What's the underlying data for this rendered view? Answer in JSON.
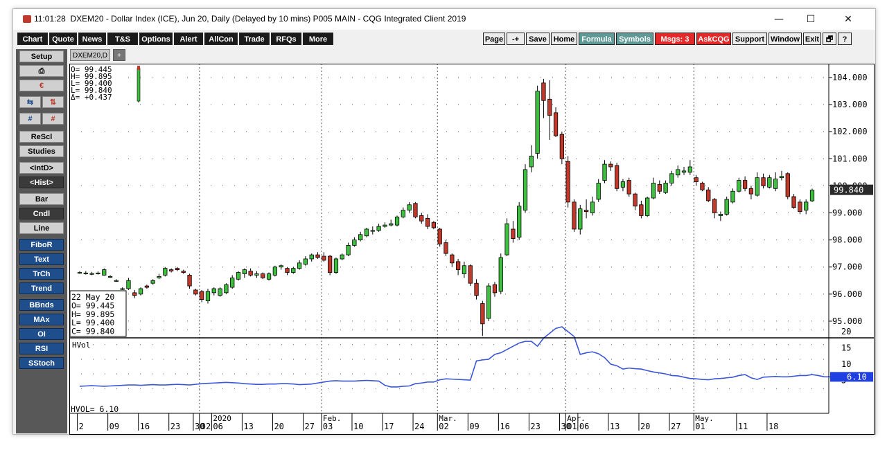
{
  "window": {
    "time": "11:01:28",
    "title": "DXEM20 - Dollar Index (ICE), Jun 20, Daily (Delayed by 10 mins)  P005 MAIN - CQG Integrated Client 2019",
    "minimize": "—",
    "maximize": "☐",
    "close": "✕"
  },
  "toolbar": {
    "left": [
      "Chart",
      "Quote",
      "News",
      "T&S",
      "Options",
      "Alert",
      "AllCon",
      "Trade",
      "RFQs",
      "More"
    ],
    "right": [
      {
        "label": "Page",
        "style": "light"
      },
      {
        "label": "-+",
        "style": "light"
      },
      {
        "label": "Save",
        "style": "light"
      },
      {
        "label": "Home",
        "style": "light"
      },
      {
        "label": "Formula",
        "style": "teal"
      },
      {
        "label": "Symbols",
        "style": "teal"
      },
      {
        "label": "Msgs: 3",
        "style": "red"
      },
      {
        "label": "AskCQG",
        "style": "red"
      },
      {
        "label": "Support",
        "style": "light"
      },
      {
        "label": "Window",
        "style": "light"
      },
      {
        "label": "Exit",
        "style": "light"
      },
      {
        "label": "🗗",
        "style": "light"
      },
      {
        "label": "?",
        "style": "light"
      }
    ]
  },
  "sidebar": {
    "setup": "Setup",
    "icons": [
      "printer-icon",
      "export-icon",
      "arrows-swap-icon",
      "arrows-updown-icon",
      "grid-blue-icon",
      "grid-red-icon"
    ],
    "buttons": [
      {
        "label": "ReScl",
        "style": "gray"
      },
      {
        "label": "Studies",
        "style": "gray"
      },
      {
        "label": "<IntD>",
        "style": "gray"
      },
      {
        "label": "<Hist>",
        "style": "dark"
      },
      {
        "label": "Bar",
        "style": "gray"
      },
      {
        "label": "Cndl",
        "style": "dark"
      },
      {
        "label": "Line",
        "style": "gray"
      },
      {
        "label": "FiboR",
        "style": "blue"
      },
      {
        "label": "Text",
        "style": "blue"
      },
      {
        "label": "TrCh",
        "style": "blue"
      },
      {
        "label": "Trend",
        "style": "blue"
      },
      {
        "label": "BBnds",
        "style": "blue"
      },
      {
        "label": "MAx",
        "style": "blue"
      },
      {
        "label": "OI",
        "style": "blue"
      },
      {
        "label": "RSI",
        "style": "blue"
      },
      {
        "label": "SStoch",
        "style": "blue"
      }
    ]
  },
  "tabs": {
    "active": "DXEM20,D",
    "add": "+"
  },
  "quote_box": [
    "O= 99.445",
    "H= 99.895",
    "L= 99.400",
    "L= 99.840",
    "Δ= +0.437"
  ],
  "cursor_box": [
    "22 May 20",
    "O=  99.445",
    "H=  99.895",
    "L=  99.400",
    "C=  99.840"
  ],
  "price_axis": {
    "ticks": [
      "104.000",
      "103.000",
      "102.000",
      "101.000",
      "100.000",
      "99.000",
      "98.000",
      "97.000",
      "96.000",
      "95.000"
    ],
    "last": "99.840"
  },
  "hvol": {
    "label": "HVol",
    "readout": "HVOL=     6.10",
    "ticks": [
      "20",
      "15",
      "10",
      "5"
    ],
    "last": "6.10"
  },
  "date_axis": {
    "days": [
      "2",
      "09",
      "16",
      "23",
      "30",
      "02",
      "06",
      "13",
      "20",
      "27",
      "03",
      "10",
      "17",
      "24",
      "02",
      "09",
      "16",
      "23",
      "30",
      "01",
      "06",
      "13",
      "20",
      "27",
      "01",
      "11",
      "18"
    ],
    "months": [
      "2020",
      "Feb.",
      "Mar.",
      "Apr.",
      "May."
    ]
  },
  "colors": {
    "up": "#3fbf3f",
    "down": "#c0392b",
    "hvol": "#3a55d6",
    "frame": "#000000"
  },
  "chart_data": [
    {
      "type": "candlestick",
      "series": "DXEM20 Daily",
      "ylim": [
        94.0,
        104.3
      ],
      "candles": [
        {
          "o": 96.8,
          "h": 96.85,
          "l": 96.75,
          "c": 96.8
        },
        {
          "o": 96.78,
          "h": 96.85,
          "l": 96.72,
          "c": 96.78
        },
        {
          "o": 96.76,
          "h": 96.82,
          "l": 96.7,
          "c": 96.76
        },
        {
          "o": 96.78,
          "h": 96.84,
          "l": 96.72,
          "c": 96.78
        },
        {
          "o": 96.7,
          "h": 96.95,
          "l": 96.68,
          "c": 96.9
        },
        {
          "o": 96.65,
          "h": 96.7,
          "l": 96.6,
          "c": 96.65
        },
        {
          "o": 96.5,
          "h": 96.55,
          "l": 96.45,
          "c": 96.5
        },
        {
          "o": 96.2,
          "h": 96.25,
          "l": 96.15,
          "c": 96.2
        },
        {
          "o": 96.2,
          "h": 96.6,
          "l": 96.15,
          "c": 96.5
        },
        {
          "o": 96.05,
          "h": 96.15,
          "l": 95.85,
          "c": 95.95
        },
        {
          "o": 96.0,
          "h": 96.25,
          "l": 95.95,
          "c": 96.2
        },
        {
          "o": 96.3,
          "h": 96.35,
          "l": 96.2,
          "c": 96.25
        },
        {
          "o": 96.4,
          "h": 96.55,
          "l": 96.35,
          "c": 96.5
        },
        {
          "o": 96.6,
          "h": 96.75,
          "l": 96.55,
          "c": 96.65
        },
        {
          "o": 96.7,
          "h": 97.0,
          "l": 96.65,
          "c": 96.95
        },
        {
          "o": 96.9,
          "h": 96.95,
          "l": 96.8,
          "c": 96.85
        },
        {
          "o": 96.95,
          "h": 97.0,
          "l": 96.85,
          "c": 96.9
        },
        {
          "o": 96.85,
          "h": 96.9,
          "l": 96.75,
          "c": 96.8
        },
        {
          "o": 96.7,
          "h": 96.75,
          "l": 96.2,
          "c": 96.3
        },
        {
          "o": 96.15,
          "h": 96.2,
          "l": 95.95,
          "c": 96.0
        },
        {
          "o": 96.1,
          "h": 96.15,
          "l": 95.7,
          "c": 95.8
        },
        {
          "o": 95.75,
          "h": 96.2,
          "l": 95.65,
          "c": 96.1
        },
        {
          "o": 96.05,
          "h": 96.25,
          "l": 95.95,
          "c": 96.2
        },
        {
          "o": 95.95,
          "h": 96.25,
          "l": 95.9,
          "c": 96.2
        },
        {
          "o": 96.05,
          "h": 96.4,
          "l": 96.0,
          "c": 96.35
        },
        {
          "o": 96.25,
          "h": 96.7,
          "l": 96.2,
          "c": 96.6
        },
        {
          "o": 96.55,
          "h": 96.85,
          "l": 96.5,
          "c": 96.8
        },
        {
          "o": 96.75,
          "h": 96.95,
          "l": 96.6,
          "c": 96.9
        },
        {
          "o": 96.85,
          "h": 96.95,
          "l": 96.65,
          "c": 96.7
        },
        {
          "o": 96.7,
          "h": 96.85,
          "l": 96.6,
          "c": 96.75
        },
        {
          "o": 96.75,
          "h": 96.8,
          "l": 96.55,
          "c": 96.6
        },
        {
          "o": 96.55,
          "h": 96.8,
          "l": 96.5,
          "c": 96.75
        },
        {
          "o": 96.7,
          "h": 97.05,
          "l": 96.65,
          "c": 97.0
        },
        {
          "o": 97.0,
          "h": 97.1,
          "l": 96.9,
          "c": 97.05
        },
        {
          "o": 96.95,
          "h": 97.0,
          "l": 96.7,
          "c": 96.8
        },
        {
          "o": 96.8,
          "h": 97.0,
          "l": 96.75,
          "c": 96.95
        },
        {
          "o": 96.95,
          "h": 97.25,
          "l": 96.9,
          "c": 97.15
        },
        {
          "o": 97.1,
          "h": 97.4,
          "l": 97.05,
          "c": 97.3
        },
        {
          "o": 97.3,
          "h": 97.5,
          "l": 97.2,
          "c": 97.45
        },
        {
          "o": 97.45,
          "h": 97.55,
          "l": 97.3,
          "c": 97.35
        },
        {
          "o": 97.4,
          "h": 97.55,
          "l": 97.2,
          "c": 97.25
        },
        {
          "o": 97.4,
          "h": 97.45,
          "l": 96.7,
          "c": 96.8
        },
        {
          "o": 96.8,
          "h": 97.35,
          "l": 96.75,
          "c": 97.3
        },
        {
          "o": 97.3,
          "h": 97.5,
          "l": 97.25,
          "c": 97.45
        },
        {
          "o": 97.45,
          "h": 97.9,
          "l": 97.4,
          "c": 97.8
        },
        {
          "o": 97.8,
          "h": 98.1,
          "l": 97.75,
          "c": 98.0
        },
        {
          "o": 98.0,
          "h": 98.3,
          "l": 97.95,
          "c": 98.2
        },
        {
          "o": 98.15,
          "h": 98.45,
          "l": 98.1,
          "c": 98.4
        },
        {
          "o": 98.35,
          "h": 98.5,
          "l": 98.2,
          "c": 98.35
        },
        {
          "o": 98.35,
          "h": 98.6,
          "l": 98.3,
          "c": 98.5
        },
        {
          "o": 98.5,
          "h": 98.65,
          "l": 98.45,
          "c": 98.55
        },
        {
          "o": 98.55,
          "h": 98.75,
          "l": 98.5,
          "c": 98.6
        },
        {
          "o": 98.55,
          "h": 98.9,
          "l": 98.5,
          "c": 98.85
        },
        {
          "o": 98.85,
          "h": 99.2,
          "l": 98.8,
          "c": 99.1
        },
        {
          "o": 99.1,
          "h": 99.4,
          "l": 99.0,
          "c": 99.3
        },
        {
          "o": 99.35,
          "h": 99.4,
          "l": 98.8,
          "c": 98.85
        },
        {
          "o": 98.9,
          "h": 99.0,
          "l": 98.6,
          "c": 98.7
        },
        {
          "o": 98.8,
          "h": 98.95,
          "l": 98.4,
          "c": 98.5
        },
        {
          "o": 98.65,
          "h": 98.7,
          "l": 98.4,
          "c": 98.45
        },
        {
          "o": 98.4,
          "h": 98.45,
          "l": 97.75,
          "c": 97.85
        },
        {
          "o": 97.9,
          "h": 98.0,
          "l": 97.4,
          "c": 97.5
        },
        {
          "o": 97.45,
          "h": 97.5,
          "l": 97.0,
          "c": 97.15
        },
        {
          "o": 97.2,
          "h": 97.3,
          "l": 96.7,
          "c": 96.9
        },
        {
          "o": 96.75,
          "h": 97.2,
          "l": 96.6,
          "c": 97.05
        },
        {
          "o": 97.05,
          "h": 97.1,
          "l": 96.3,
          "c": 96.4
        },
        {
          "o": 96.4,
          "h": 96.55,
          "l": 95.8,
          "c": 95.95
        },
        {
          "o": 95.65,
          "h": 95.75,
          "l": 94.45,
          "c": 94.9
        },
        {
          "o": 95.1,
          "h": 96.4,
          "l": 95.0,
          "c": 96.3
        },
        {
          "o": 96.35,
          "h": 96.45,
          "l": 95.9,
          "c": 96.05
        },
        {
          "o": 96.1,
          "h": 97.5,
          "l": 96.0,
          "c": 97.35
        },
        {
          "o": 97.45,
          "h": 98.8,
          "l": 97.4,
          "c": 98.6
        },
        {
          "o": 98.4,
          "h": 98.7,
          "l": 97.9,
          "c": 98.05
        },
        {
          "o": 98.1,
          "h": 99.4,
          "l": 98.0,
          "c": 99.25
        },
        {
          "o": 99.1,
          "h": 100.8,
          "l": 99.0,
          "c": 100.6
        },
        {
          "o": 100.7,
          "h": 101.5,
          "l": 100.5,
          "c": 101.1
        },
        {
          "o": 101.2,
          "h": 103.7,
          "l": 101.0,
          "c": 103.5
        },
        {
          "o": 103.8,
          "h": 103.95,
          "l": 102.5,
          "c": 103.15
        },
        {
          "o": 103.2,
          "h": 103.9,
          "l": 101.7,
          "c": 102.6
        },
        {
          "o": 102.7,
          "h": 102.9,
          "l": 101.8,
          "c": 101.85
        },
        {
          "o": 101.9,
          "h": 102.0,
          "l": 100.8,
          "c": 101.0
        },
        {
          "o": 100.9,
          "h": 101.1,
          "l": 99.2,
          "c": 99.4
        },
        {
          "o": 99.4,
          "h": 99.5,
          "l": 98.3,
          "c": 98.4
        },
        {
          "o": 98.4,
          "h": 99.3,
          "l": 98.2,
          "c": 99.15
        },
        {
          "o": 99.1,
          "h": 99.5,
          "l": 98.8,
          "c": 99.05
        },
        {
          "o": 99.0,
          "h": 99.6,
          "l": 98.9,
          "c": 99.4
        },
        {
          "o": 99.5,
          "h": 100.25,
          "l": 99.4,
          "c": 100.1
        },
        {
          "o": 100.2,
          "h": 100.95,
          "l": 100.1,
          "c": 100.8
        },
        {
          "o": 100.8,
          "h": 100.9,
          "l": 100.55,
          "c": 100.7
        },
        {
          "o": 100.75,
          "h": 100.85,
          "l": 99.8,
          "c": 99.9
        },
        {
          "o": 99.95,
          "h": 100.25,
          "l": 99.8,
          "c": 100.15
        },
        {
          "o": 100.2,
          "h": 100.3,
          "l": 99.6,
          "c": 99.7
        },
        {
          "o": 99.7,
          "h": 99.75,
          "l": 99.1,
          "c": 99.25
        },
        {
          "o": 99.3,
          "h": 99.45,
          "l": 98.8,
          "c": 98.9
        },
        {
          "o": 98.9,
          "h": 99.6,
          "l": 98.85,
          "c": 99.55
        },
        {
          "o": 99.55,
          "h": 100.3,
          "l": 99.5,
          "c": 100.1
        },
        {
          "o": 100.05,
          "h": 100.2,
          "l": 99.7,
          "c": 99.8
        },
        {
          "o": 99.75,
          "h": 100.2,
          "l": 99.7,
          "c": 100.1
        },
        {
          "o": 100.1,
          "h": 100.55,
          "l": 100.0,
          "c": 100.45
        },
        {
          "o": 100.4,
          "h": 100.75,
          "l": 100.3,
          "c": 100.6
        },
        {
          "o": 100.5,
          "h": 100.7,
          "l": 100.4,
          "c": 100.55
        },
        {
          "o": 100.5,
          "h": 100.95,
          "l": 100.4,
          "c": 100.7
        },
        {
          "o": 100.3,
          "h": 100.4,
          "l": 100.0,
          "c": 100.15
        },
        {
          "o": 100.1,
          "h": 100.15,
          "l": 99.8,
          "c": 99.85
        },
        {
          "o": 99.85,
          "h": 99.95,
          "l": 99.4,
          "c": 99.45
        },
        {
          "o": 99.5,
          "h": 99.55,
          "l": 98.8,
          "c": 99.0
        },
        {
          "o": 98.9,
          "h": 99.05,
          "l": 98.7,
          "c": 98.95
        },
        {
          "o": 98.95,
          "h": 99.6,
          "l": 98.9,
          "c": 99.5
        },
        {
          "o": 99.4,
          "h": 99.9,
          "l": 99.35,
          "c": 99.8
        },
        {
          "o": 99.8,
          "h": 100.3,
          "l": 99.75,
          "c": 100.2
        },
        {
          "o": 100.2,
          "h": 100.35,
          "l": 99.8,
          "c": 99.9
        },
        {
          "o": 99.9,
          "h": 100.0,
          "l": 99.5,
          "c": 99.7
        },
        {
          "o": 99.65,
          "h": 100.5,
          "l": 99.6,
          "c": 100.3
        },
        {
          "o": 100.3,
          "h": 100.45,
          "l": 99.9,
          "c": 100.0
        },
        {
          "o": 99.95,
          "h": 100.4,
          "l": 99.9,
          "c": 100.3
        },
        {
          "o": 99.9,
          "h": 100.5,
          "l": 99.8,
          "c": 100.25
        },
        {
          "o": 100.3,
          "h": 100.55,
          "l": 100.2,
          "c": 100.35
        },
        {
          "o": 100.45,
          "h": 100.5,
          "l": 99.5,
          "c": 99.6
        },
        {
          "o": 99.6,
          "h": 99.7,
          "l": 99.15,
          "c": 99.2
        },
        {
          "o": 99.4,
          "h": 99.5,
          "l": 98.95,
          "c": 99.05
        },
        {
          "o": 99.1,
          "h": 99.5,
          "l": 98.95,
          "c": 99.4
        },
        {
          "o": 99.445,
          "h": 99.895,
          "l": 99.4,
          "c": 99.84
        }
      ]
    },
    {
      "type": "line",
      "series": "HVol",
      "ylim": [
        0,
        22
      ],
      "values": [
        3.2,
        3.3,
        3.4,
        3.3,
        3.2,
        3.3,
        3.4,
        3.5,
        3.6,
        3.6,
        3.5,
        3.6,
        3.7,
        3.6,
        3.6,
        3.7,
        3.8,
        3.7,
        3.6,
        3.8,
        4.0,
        4.1,
        4.2,
        4.3,
        4.4,
        4.3,
        4.2,
        4.0,
        3.9,
        3.8,
        3.8,
        3.9,
        3.9,
        4.0,
        4.0,
        3.9,
        3.7,
        3.8,
        3.9,
        4.2,
        4.5,
        4.8,
        4.9,
        4.8,
        4.8,
        4.8,
        4.9,
        5.0,
        4.9,
        4.8,
        3.5,
        3.0,
        3.0,
        3.2,
        3.3,
        4.0,
        4.2,
        4.5,
        4.5,
        5.2,
        5.5,
        5.4,
        5.3,
        5.2,
        5.1,
        11.0,
        11.3,
        11.5,
        13.0,
        13.5,
        14.5,
        15.5,
        16.5,
        17.0,
        17.0,
        15.5,
        18.0,
        19.5,
        21.0,
        21.5,
        20.0,
        18.5,
        13.0,
        13.5,
        13.8,
        13.2,
        12.0,
        10.0,
        9.5,
        8.5,
        8.8,
        8.6,
        8.5,
        8.0,
        7.6,
        7.3,
        7.0,
        6.5,
        6.4,
        6.0,
        5.6,
        5.5,
        5.3,
        5.2,
        5.5,
        5.6,
        5.8,
        6.0,
        6.5,
        6.8,
        5.8,
        5.3,
        6.0,
        6.1,
        6.2,
        6.1,
        6.1,
        6.3,
        6.5,
        6.5,
        6.8,
        6.5,
        6.1,
        6.1,
        6.1,
        6.2,
        6.0,
        6.0,
        6.0,
        6.1
      ]
    }
  ]
}
